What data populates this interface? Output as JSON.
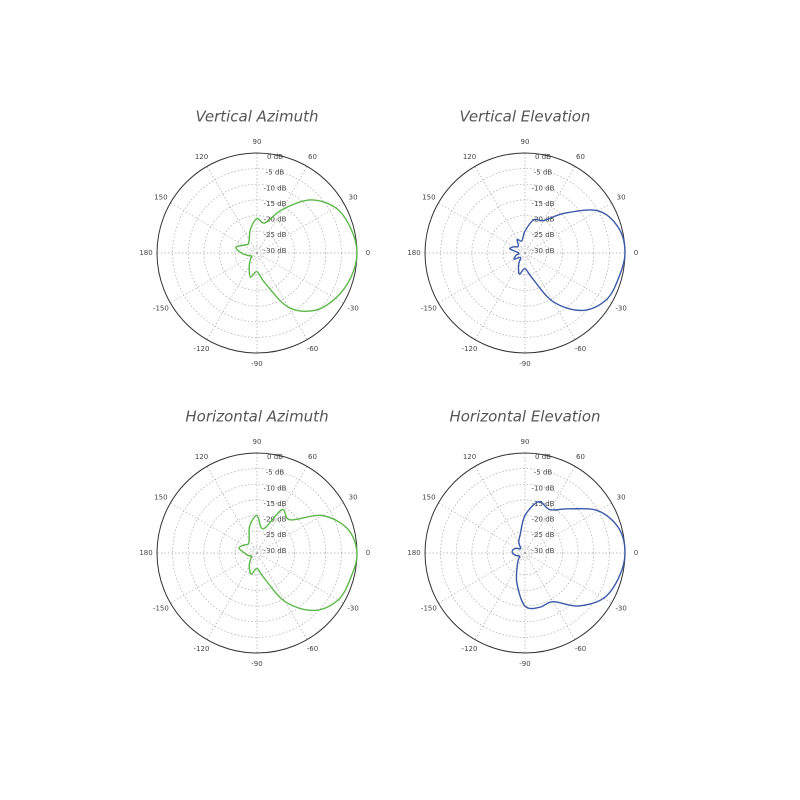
{
  "chart_data": [
    {
      "type": "polar",
      "title": "Vertical Azimuth",
      "color": "#5cb848",
      "grid": true,
      "theta": [
        0,
        15,
        30,
        45,
        60,
        75,
        90,
        105,
        120,
        135,
        150,
        165,
        180,
        195,
        210,
        225,
        240,
        255,
        270,
        285,
        300,
        315,
        330,
        345
      ],
      "values": [
        0,
        -1,
        -3,
        -8,
        -16,
        -22,
        -21,
        -24,
        -27,
        -28,
        -27,
        -25,
        -27,
        -29,
        -30,
        -29,
        -27,
        -24,
        -26,
        -22,
        -12,
        -6,
        -3,
        -1
      ],
      "rlim": [
        -32,
        0
      ],
      "rticks": [
        {
          "value": 0,
          "label": "0 dB"
        },
        {
          "value": -5,
          "label": "-5 dB"
        },
        {
          "value": -10,
          "label": "-10 dB"
        },
        {
          "value": -15,
          "label": "-15 dB"
        },
        {
          "value": -20,
          "label": "-20 dB"
        },
        {
          "value": -25,
          "label": "-25 dB"
        },
        {
          "value": -30,
          "label": "-30 dB"
        }
      ],
      "thetaticks": [
        0,
        30,
        60,
        90,
        120,
        150,
        180,
        -150,
        -120,
        -90,
        -60,
        -30
      ]
    },
    {
      "type": "polar",
      "title": "Vertical Elevation",
      "color": "#3a5aa8",
      "grid": true,
      "theta": [
        0,
        15,
        30,
        45,
        60,
        75,
        90,
        105,
        120,
        135,
        150,
        165,
        180,
        195,
        210,
        225,
        240,
        255,
        270,
        285,
        300,
        315,
        330,
        345
      ],
      "values": [
        0,
        -1,
        -5,
        -14,
        -20,
        -21,
        -25,
        -28,
        -27,
        -29,
        -28,
        -27,
        -30,
        -29,
        -28,
        -30,
        -28,
        -25,
        -27,
        -24,
        -14,
        -6,
        -2,
        -1
      ],
      "rlim": [
        -32,
        0
      ],
      "rticks": [
        {
          "value": 0,
          "label": "0 dB"
        },
        {
          "value": -5,
          "label": "-5 dB"
        },
        {
          "value": -10,
          "label": "-10 dB"
        },
        {
          "value": -15,
          "label": "-15 dB"
        },
        {
          "value": -20,
          "label": "-20 dB"
        },
        {
          "value": -25,
          "label": "-25 dB"
        },
        {
          "value": -30,
          "label": "-30 dB"
        }
      ],
      "thetaticks": [
        0,
        30,
        60,
        90,
        120,
        150,
        180,
        -150,
        -120,
        -90,
        -60,
        -30
      ]
    },
    {
      "type": "polar",
      "title": "Horizontal Azimuth",
      "color": "#5cb848",
      "grid": true,
      "theta": [
        0,
        15,
        30,
        45,
        60,
        75,
        90,
        105,
        120,
        135,
        150,
        165,
        180,
        195,
        210,
        225,
        240,
        255,
        270,
        285,
        300,
        315,
        330,
        345
      ],
      "values": [
        0,
        -2,
        -8,
        -17,
        -16,
        -24,
        -20,
        -23,
        -27,
        -28,
        -27,
        -26,
        -28,
        -29,
        -30,
        -29,
        -27,
        -25,
        -27,
        -24,
        -14,
        -6,
        -2,
        -1
      ],
      "rlim": [
        -32,
        0
      ],
      "rticks": [
        {
          "value": 0,
          "label": "0 dB"
        },
        {
          "value": -5,
          "label": "-5 dB"
        },
        {
          "value": -10,
          "label": "-10 dB"
        },
        {
          "value": -15,
          "label": "-15 dB"
        },
        {
          "value": -20,
          "label": "-20 dB"
        },
        {
          "value": -25,
          "label": "-25 dB"
        },
        {
          "value": -30,
          "label": "-30 dB"
        }
      ],
      "thetaticks": [
        0,
        30,
        60,
        90,
        120,
        150,
        180,
        -150,
        -120,
        -90,
        -60,
        -30
      ]
    },
    {
      "type": "polar",
      "title": "Horizontal Elevation",
      "color": "#3a5aa8",
      "grid": true,
      "theta": [
        0,
        15,
        30,
        45,
        60,
        75,
        90,
        105,
        120,
        135,
        150,
        165,
        180,
        195,
        210,
        225,
        240,
        255,
        270,
        285,
        300,
        315,
        330,
        345
      ],
      "values": [
        0,
        -1,
        -5,
        -12,
        -16,
        -15,
        -20,
        -26,
        -28,
        -30,
        -29,
        -28,
        -28,
        -29,
        -30,
        -29,
        -27,
        -22,
        -15,
        -14,
        -14,
        -8,
        -3,
        -1
      ],
      "rlim": [
        -32,
        0
      ],
      "rticks": [
        {
          "value": 0,
          "label": "0 dB"
        },
        {
          "value": -5,
          "label": "-5 dB"
        },
        {
          "value": -10,
          "label": "-10 dB"
        },
        {
          "value": -15,
          "label": "-15 dB"
        },
        {
          "value": -20,
          "label": "-20 dB"
        },
        {
          "value": -25,
          "label": "-25 dB"
        },
        {
          "value": -30,
          "label": "-30 dB"
        }
      ],
      "thetaticks": [
        0,
        30,
        60,
        90,
        120,
        150,
        180,
        -150,
        -120,
        -90,
        -60,
        -30
      ]
    }
  ]
}
